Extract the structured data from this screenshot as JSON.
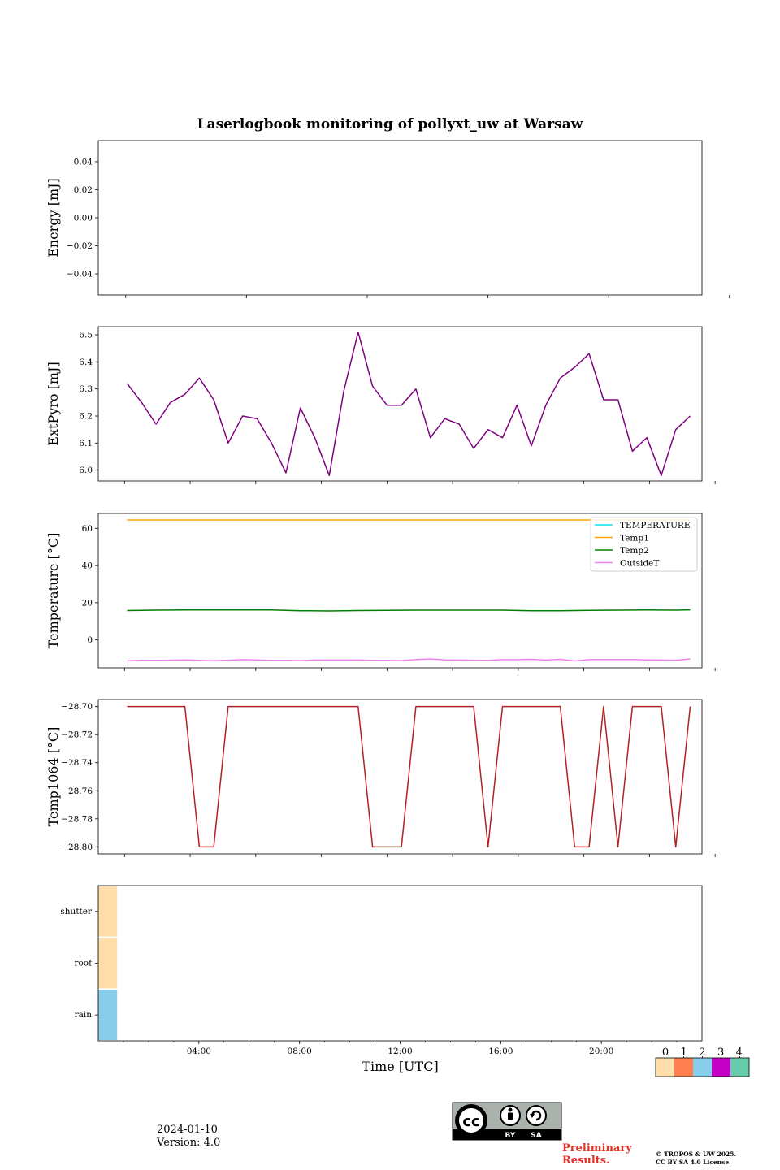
{
  "figure": {
    "title": "Laserlogbook monitoring of pollyxt_uw at Warsaw",
    "date": "2024-01-10",
    "version": "Version: 4.0",
    "preliminary_line1": "Preliminary",
    "preliminary_line2": "Results.",
    "copyright_line1": "© TROPOS & UW 2025.",
    "copyright_line2": "CC BY SA 4.0 License.",
    "license_badge": {
      "icon": "cc-by-sa-icon",
      "labels": [
        "BY",
        "SA"
      ]
    }
  },
  "chart_data": [
    {
      "type": "line",
      "ylabel": "Energy [mJ]",
      "ylim": [
        -0.055,
        0.055
      ],
      "yticks": [
        0.04,
        0.02,
        0.0,
        -0.02,
        -0.04
      ],
      "ytick_labels": [
        "0.04",
        "0.02",
        "0.00",
        "−0.02",
        "−0.04"
      ],
      "xlim": [
        0,
        22
      ],
      "xticks": [
        1,
        5.4,
        9.8,
        14.2,
        18.6,
        23
      ],
      "series": []
    },
    {
      "type": "line",
      "ylabel": "ExtPyro [mJ]",
      "ylim": [
        5.96,
        6.53
      ],
      "yticks": [
        6.0,
        6.1,
        6.2,
        6.3,
        6.4,
        6.5
      ],
      "ytick_labels": [
        "6.0",
        "6.1",
        "6.2",
        "6.3",
        "6.4",
        "6.5"
      ],
      "xlim": [
        0.0,
        23.0
      ],
      "xticks": [
        1,
        3.5,
        6,
        8.5,
        11,
        13.5,
        16,
        18.5,
        21,
        23.5
      ],
      "series": [
        {
          "color": "#800080",
          "x": [
            1.1,
            1.65,
            2.2,
            2.75,
            3.3,
            3.85,
            4.4,
            4.95,
            5.5,
            6.05,
            6.6,
            7.15,
            7.7,
            8.25,
            8.8,
            9.35,
            9.9,
            10.45,
            11.0,
            11.55,
            12.1,
            12.65,
            13.2,
            13.75,
            14.3,
            14.85,
            15.4,
            15.95,
            16.5,
            17.05,
            17.6,
            18.15,
            18.7,
            19.25,
            19.8,
            20.35,
            20.9,
            21.45,
            22.0,
            22.55
          ],
          "y": [
            6.32,
            6.25,
            6.17,
            6.25,
            6.28,
            6.34,
            6.26,
            6.1,
            6.2,
            6.19,
            6.1,
            5.99,
            6.23,
            6.12,
            5.98,
            6.29,
            6.51,
            6.31,
            6.24,
            6.24,
            6.3,
            6.12,
            6.19,
            6.17,
            6.08,
            6.15,
            6.12,
            6.24,
            6.09,
            6.24,
            6.34,
            6.38,
            6.43,
            6.26,
            6.26,
            6.07,
            6.12,
            5.98,
            6.15,
            6.2
          ]
        }
      ]
    },
    {
      "type": "line",
      "ylabel": "Temperature [°C]",
      "ylim": [
        -15,
        68
      ],
      "yticks": [
        60,
        40,
        20,
        0
      ],
      "ytick_labels": [
        "60",
        "40",
        "20",
        "0"
      ],
      "xlim": [
        0.0,
        23.0
      ],
      "xticks": [
        1,
        3.5,
        6,
        8.5,
        11,
        13.5,
        16,
        18.5,
        21,
        23.5
      ],
      "legend": {
        "loc": "upper right",
        "entries": [
          "TEMPERATURE",
          "Temp1",
          "Temp2",
          "OutsideT"
        ]
      },
      "series": [
        {
          "name": "TEMPERATURE",
          "color": "#00e5e5",
          "x": [],
          "y": []
        },
        {
          "name": "Temp1",
          "color": "#ffa500",
          "x": [
            1.1,
            22.55
          ],
          "y": [
            64.5,
            64.5
          ]
        },
        {
          "name": "Temp2",
          "color": "#008000",
          "x": [
            1.1,
            2.2,
            3.3,
            4.4,
            5.5,
            6.6,
            7.7,
            8.8,
            9.9,
            11.0,
            12.1,
            13.2,
            14.3,
            15.4,
            16.5,
            17.6,
            18.7,
            19.8,
            20.9,
            22.0,
            22.55
          ],
          "y": [
            15.8,
            16.0,
            16.1,
            16.1,
            16.1,
            16.1,
            15.7,
            15.6,
            15.8,
            15.9,
            16.0,
            16.0,
            16.0,
            16.0,
            15.7,
            15.7,
            15.9,
            16.0,
            16.1,
            16.0,
            16.2
          ]
        },
        {
          "name": "OutsideT",
          "color": "#ee82ee",
          "x": [
            1.1,
            1.65,
            2.2,
            2.75,
            3.3,
            3.85,
            4.4,
            4.95,
            5.5,
            6.05,
            6.6,
            7.15,
            7.7,
            8.25,
            8.8,
            9.35,
            9.9,
            10.45,
            11.0,
            11.55,
            12.1,
            12.65,
            13.2,
            13.75,
            14.3,
            14.85,
            15.4,
            15.95,
            16.5,
            17.05,
            17.6,
            18.15,
            18.7,
            19.25,
            19.8,
            20.35,
            20.9,
            21.45,
            22.0,
            22.55
          ],
          "y": [
            -11.3,
            -10.9,
            -11.0,
            -10.9,
            -10.7,
            -11.0,
            -11.2,
            -10.9,
            -10.6,
            -10.8,
            -11.0,
            -11.0,
            -11.1,
            -10.8,
            -10.8,
            -10.8,
            -10.8,
            -11.0,
            -11.0,
            -11.1,
            -10.6,
            -10.2,
            -10.7,
            -10.8,
            -10.9,
            -11.0,
            -10.6,
            -10.6,
            -10.4,
            -10.8,
            -10.4,
            -11.3,
            -10.6,
            -10.5,
            -10.5,
            -10.5,
            -10.7,
            -10.8,
            -10.9,
            -10.2
          ]
        }
      ]
    },
    {
      "type": "line",
      "ylabel": "Temp1064 [°C]",
      "ylim": [
        -28.805,
        -28.695
      ],
      "yticks": [
        -28.7,
        -28.72,
        -28.74,
        -28.76,
        -28.78,
        -28.8
      ],
      "ytick_labels": [
        "−28.70",
        "−28.72",
        "−28.74",
        "−28.76",
        "−28.78",
        "−28.80"
      ],
      "xlim": [
        0.0,
        23.0
      ],
      "xticks": [
        1,
        3.5,
        6,
        8.5,
        11,
        13.5,
        16,
        18.5,
        21,
        23.5
      ],
      "series": [
        {
          "color": "#b22222",
          "x": [
            1.1,
            1.65,
            2.2,
            2.75,
            3.3,
            3.85,
            4.4,
            4.95,
            5.5,
            6.05,
            6.6,
            7.15,
            7.7,
            8.25,
            8.8,
            9.35,
            9.9,
            10.45,
            11.0,
            11.55,
            12.1,
            12.65,
            13.2,
            13.75,
            14.3,
            14.85,
            15.4,
            15.95,
            16.5,
            17.05,
            17.6,
            18.15,
            18.7,
            19.25,
            19.8,
            20.35,
            20.9,
            21.45,
            22.0,
            22.55
          ],
          "y": [
            -28.7,
            -28.7,
            -28.7,
            -28.7,
            -28.7,
            -28.8,
            -28.8,
            -28.7,
            -28.7,
            -28.7,
            -28.7,
            -28.7,
            -28.7,
            -28.7,
            -28.7,
            -28.7,
            -28.7,
            -28.8,
            -28.8,
            -28.8,
            -28.7,
            -28.7,
            -28.7,
            -28.7,
            -28.7,
            -28.8,
            -28.7,
            -28.7,
            -28.7,
            -28.7,
            -28.7,
            -28.8,
            -28.8,
            -28.7,
            -28.8,
            -28.7,
            -28.7,
            -28.7,
            -28.8,
            -28.7
          ]
        }
      ]
    },
    {
      "type": "heatmap",
      "categories": [
        "shutter",
        "roof",
        "rain"
      ],
      "xlabel": "Time [UTC]",
      "xlim": [
        0,
        24
      ],
      "xticks": [
        4,
        8,
        12,
        16,
        20
      ],
      "xtick_labels": [
        "04:00",
        "08:00",
        "12:00",
        "16:00",
        "20:00"
      ],
      "cells": [
        {
          "row": "shutter",
          "x_start": 0,
          "x_end": 0.75,
          "value": 0
        },
        {
          "row": "roof",
          "x_start": 0,
          "x_end": 0.75,
          "value": 0
        },
        {
          "row": "rain",
          "x_start": 0,
          "x_end": 0.75,
          "value": 2
        }
      ],
      "colorbar": {
        "labels": [
          "0",
          "1",
          "2",
          "3",
          "4"
        ],
        "colors": [
          "#ffdeab",
          "#ff7f50",
          "#87ceeb",
          "#c400c4",
          "#66cdaa"
        ]
      }
    }
  ]
}
